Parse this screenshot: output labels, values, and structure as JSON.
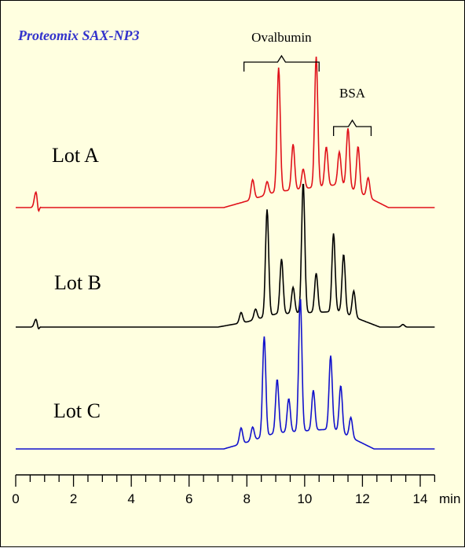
{
  "chart_data": {
    "type": "line",
    "title": "Proteomix SAX-NP3",
    "title_color": "#3333cc",
    "xlabel": "",
    "ylabel": "",
    "x_unit": "min",
    "xlim": [
      0,
      14.5
    ],
    "xticks": [
      0,
      2,
      4,
      6,
      8,
      10,
      12,
      14
    ],
    "xtick_labels": [
      "0",
      "2",
      "4",
      "6",
      "8",
      "10",
      "12",
      "14"
    ],
    "minor_tick_step": 0.5,
    "grid": false,
    "legend": "none",
    "annotations": [
      {
        "text": "Ovalbumin",
        "bracket": [
          7.9,
          10.5
        ]
      },
      {
        "text": "BSA",
        "bracket": [
          11.0,
          12.3
        ]
      }
    ],
    "series": [
      {
        "name": "Lot A",
        "color": "#e0111a",
        "peaks": [
          [
            0.7,
            0.12
          ],
          [
            8.2,
            0.15
          ],
          [
            8.7,
            0.1
          ],
          [
            9.1,
            0.95
          ],
          [
            9.6,
            0.35
          ],
          [
            9.95,
            0.15
          ],
          [
            10.4,
            1.0
          ],
          [
            10.75,
            0.3
          ],
          [
            11.2,
            0.25
          ],
          [
            11.5,
            0.45
          ],
          [
            11.85,
            0.35
          ],
          [
            12.2,
            0.15
          ]
        ],
        "baseline_rise": [
          [
            7.2,
            0.0
          ],
          [
            8.0,
            0.05
          ],
          [
            9.0,
            0.12
          ],
          [
            11.3,
            0.18
          ],
          [
            12.9,
            0.0
          ]
        ]
      },
      {
        "name": "Lot B",
        "color": "#000000",
        "peaks": [
          [
            0.7,
            0.06
          ],
          [
            7.8,
            0.08
          ],
          [
            8.3,
            0.08
          ],
          [
            8.7,
            0.82
          ],
          [
            9.2,
            0.42
          ],
          [
            9.6,
            0.2
          ],
          [
            9.95,
            1.0
          ],
          [
            10.4,
            0.3
          ],
          [
            11.0,
            0.6
          ],
          [
            11.35,
            0.45
          ],
          [
            11.7,
            0.2
          ],
          [
            13.4,
            0.02
          ]
        ],
        "baseline_rise": [
          [
            7.0,
            0.0
          ],
          [
            8.0,
            0.04
          ],
          [
            9.0,
            0.1
          ],
          [
            11.2,
            0.12
          ],
          [
            12.6,
            0.0
          ]
        ]
      },
      {
        "name": "Lot C",
        "color": "#1111cc",
        "peaks": [
          [
            7.8,
            0.12
          ],
          [
            8.2,
            0.1
          ],
          [
            8.6,
            0.75
          ],
          [
            9.05,
            0.4
          ],
          [
            9.45,
            0.25
          ],
          [
            9.85,
            1.0
          ],
          [
            10.3,
            0.3
          ],
          [
            10.9,
            0.55
          ],
          [
            11.25,
            0.35
          ],
          [
            11.6,
            0.15
          ]
        ],
        "baseline_rise": [
          [
            7.2,
            0.0
          ],
          [
            8.0,
            0.05
          ],
          [
            9.0,
            0.12
          ],
          [
            11.0,
            0.15
          ],
          [
            12.4,
            0.0
          ]
        ]
      }
    ]
  }
}
